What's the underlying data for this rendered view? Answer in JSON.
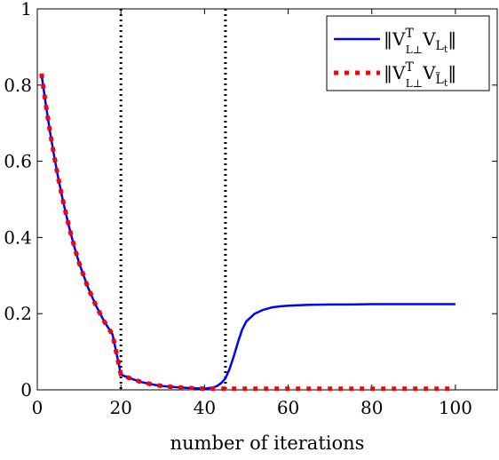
{
  "chart_data": {
    "type": "line",
    "xlabel": "number of iterations",
    "ylabel": "",
    "xlim": [
      0,
      110
    ],
    "ylim": [
      0,
      1
    ],
    "x_ticks": [
      0,
      20,
      40,
      60,
      80,
      100
    ],
    "y_ticks": [
      0,
      0.2,
      0.4,
      0.6,
      0.8,
      1
    ],
    "x_tick_labels": [
      "0",
      "20",
      "40",
      "60",
      "80",
      "100"
    ],
    "y_tick_labels": [
      "0",
      "0.2",
      "0.4",
      "0.6",
      "0.8",
      "1"
    ],
    "grid": false,
    "legend_position": "top-right",
    "vertical_lines": [
      {
        "x": 20,
        "style": "dotted",
        "color": "#000000"
      },
      {
        "x": 45,
        "style": "dotted",
        "color": "#000000"
      }
    ],
    "series": [
      {
        "legend_main": "‖V",
        "legend_sup": "T",
        "legend_sub": "L⊥",
        "legend_main2": "V",
        "legend_sub2": "L",
        "legend_subsub2": "t",
        "legend_end": "‖",
        "color": "#0000ff",
        "style": "solid",
        "x": [
          1,
          2,
          3,
          4,
          5,
          6,
          7,
          8,
          9,
          10,
          12,
          14,
          16,
          18,
          20,
          22,
          25,
          28,
          30,
          33,
          36,
          38,
          40,
          42,
          43,
          44,
          45,
          46,
          47,
          48,
          49,
          50,
          52,
          54,
          56,
          58,
          60,
          65,
          70,
          75,
          80,
          90,
          100
        ],
        "y": [
          0.83,
          0.752,
          0.681,
          0.616,
          0.557,
          0.503,
          0.455,
          0.41,
          0.37,
          0.333,
          0.272,
          0.222,
          0.18,
          0.145,
          0.04,
          0.031,
          0.02,
          0.013,
          0.01,
          0.007,
          0.005,
          0.004,
          0.003,
          0.006,
          0.01,
          0.018,
          0.03,
          0.055,
          0.088,
          0.125,
          0.158,
          0.18,
          0.2,
          0.21,
          0.216,
          0.219,
          0.221,
          0.223,
          0.224,
          0.224,
          0.225,
          0.225,
          0.225
        ]
      },
      {
        "legend_main": "‖V",
        "legend_sup": "T",
        "legend_sub": "L⊥",
        "legend_main2": "V",
        "legend_sub2": "L̃",
        "legend_subsub2": "t",
        "legend_end": "‖",
        "color": "#ff0000",
        "style": "dotted",
        "x": [
          1,
          2,
          3,
          4,
          5,
          6,
          7,
          8,
          9,
          10,
          12,
          14,
          16,
          18,
          20,
          22,
          25,
          28,
          30,
          33,
          36,
          38,
          40,
          45,
          50,
          60,
          70,
          80,
          90,
          100
        ],
        "y": [
          0.83,
          0.752,
          0.681,
          0.616,
          0.557,
          0.503,
          0.455,
          0.41,
          0.37,
          0.333,
          0.272,
          0.222,
          0.18,
          0.145,
          0.04,
          0.031,
          0.02,
          0.013,
          0.01,
          0.007,
          0.005,
          0.004,
          0.003,
          0.003,
          0.003,
          0.003,
          0.003,
          0.003,
          0.003,
          0.003
        ]
      }
    ]
  }
}
